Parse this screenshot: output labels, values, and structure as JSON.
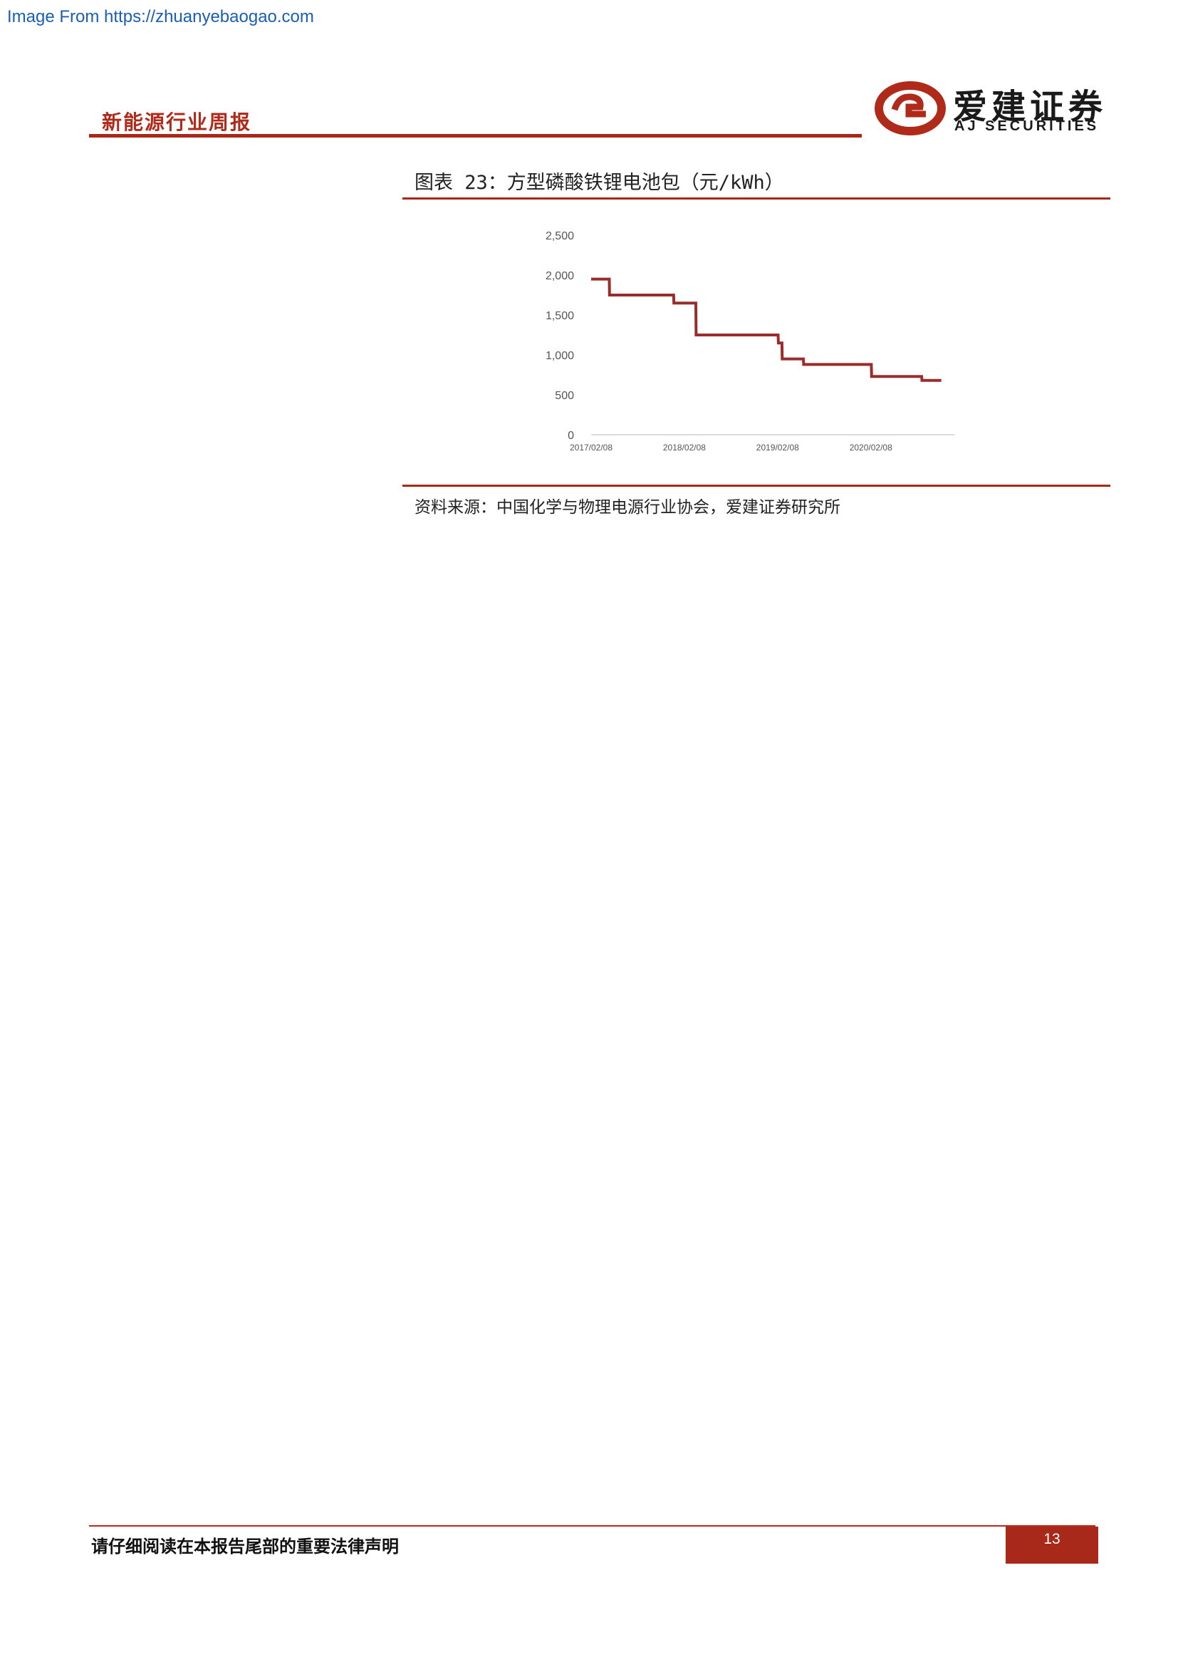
{
  "banner": {
    "text": "Image From https://zhuanyebaogao.com"
  },
  "header": {
    "report_title": "新能源行业周报",
    "logo_cn": "爱建证券",
    "logo_en": "AJ SECURITIES",
    "brand_color": "#a8281a"
  },
  "figure": {
    "caption": "图表 23：方型磷酸铁锂电池包（元/kWh）",
    "source": "资料来源：中国化学与物理电源行业协会，爱建证券研究所"
  },
  "chart_data": {
    "type": "line",
    "title": "",
    "xlabel": "",
    "ylabel": "",
    "ylim": [
      0,
      2500
    ],
    "y_ticks": [
      0,
      500,
      1000,
      1500,
      2000,
      2500
    ],
    "y_tick_labels": [
      "0",
      "500",
      "1,000",
      "1,500",
      "2,000",
      "2,500"
    ],
    "x_range": [
      "2017-02-08",
      "2020-12-31"
    ],
    "x_tick_labels": [
      "2017/02/08",
      "2018/02/08",
      "2019/02/08",
      "2020/02/08"
    ],
    "x_tick_dates": [
      "2017-02-08",
      "2018-02-08",
      "2019-02-08",
      "2020-02-08"
    ],
    "grid": false,
    "legend": "none",
    "step": true,
    "line_color": "#9b2c2c",
    "series": [
      {
        "x": [
          "2017-02-08",
          "2017-04-20",
          "2017-04-21",
          "2017-12-28",
          "2017-12-29",
          "2018-03-25",
          "2018-03-26",
          "2018-09-30",
          "2018-10-01",
          "2019-02-10",
          "2019-02-11",
          "2019-02-25",
          "2019-02-26",
          "2019-05-20",
          "2019-05-21",
          "2020-02-10",
          "2020-02-11",
          "2020-08-25",
          "2020-08-26",
          "2020-11-10"
        ],
        "y": [
          1950,
          1950,
          1750,
          1750,
          1650,
          1650,
          1250,
          1250,
          1250,
          1250,
          1150,
          1150,
          950,
          950,
          880,
          880,
          730,
          730,
          680,
          680
        ]
      }
    ]
  },
  "footer": {
    "disclaimer": "请仔细阅读在本报告尾部的重要法律声明",
    "page_number": "13"
  }
}
